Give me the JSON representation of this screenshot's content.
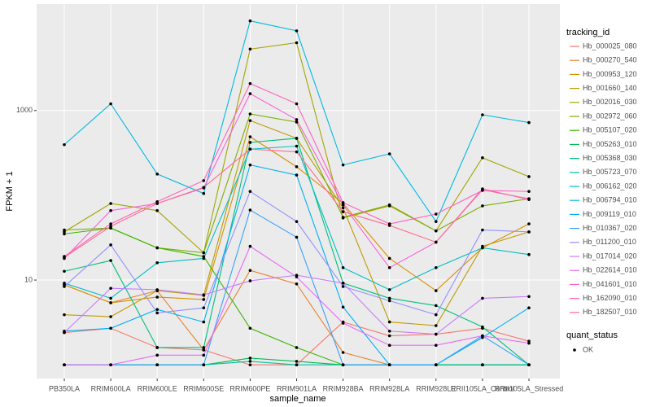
{
  "chart_data": {
    "type": "line",
    "x_label": "sample_name",
    "y_label": "FPKM + 1",
    "log_scale_y": true,
    "grid": true,
    "legend_position": "right",
    "legend_title": "tracking_id",
    "point_legend_title": "quant_status",
    "point_legend_label": "OK",
    "point_color": "#000000",
    "categories": [
      "PB350LA",
      "RRIM600LA",
      "RRIM600LE",
      "RRIM600SE",
      "RRIM600PE",
      "RRIM901LA",
      "RRIM928BA",
      "RRIM928LA",
      "RRIM928LE",
      "RRII105LA_Control",
      "RRII105LA_Stressed"
    ],
    "ylim": [
      0.69,
      18000
    ],
    "yticks": [
      10,
      1000
    ],
    "series": [
      {
        "name": "Hb_000025_080",
        "color": "#F8766D",
        "values": [
          2.4,
          2.7,
          1.6,
          1.5,
          1,
          1,
          3.2,
          2.2,
          2.3,
          2.7,
          1.9
        ]
      },
      {
        "name": "Hb_000270_540",
        "color": "#EA8331",
        "values": [
          8.8,
          5.4,
          7.5,
          1.5,
          13,
          9,
          1.4,
          1,
          1,
          1,
          1
        ]
      },
      {
        "name": "Hb_000953_120",
        "color": "#D89000",
        "values": [
          8.8,
          5.4,
          6.3,
          5.9,
          490,
          217,
          80,
          18,
          7.5,
          24,
          46
        ]
      },
      {
        "name": "Hb_001660_140",
        "color": "#C09B00",
        "values": [
          3.9,
          3.7,
          7.5,
          6.6,
          760,
          470,
          71,
          3.2,
          2.9,
          25,
          37
        ]
      },
      {
        "name": "Hb_002016_030",
        "color": "#A3A500",
        "values": [
          37,
          80,
          66,
          21,
          5300,
          6300,
          54,
          75,
          38,
          277,
          166
        ]
      },
      {
        "name": "Hb_002972_060",
        "color": "#7CAE00",
        "values": [
          39,
          41,
          24,
          21,
          910,
          730,
          55,
          77,
          38,
          75,
          91
        ]
      },
      {
        "name": "Hb_005107_020",
        "color": "#39B600",
        "values": [
          35,
          41,
          24,
          19,
          2.7,
          1.6,
          1,
          1,
          1,
          1,
          1
        ]
      },
      {
        "name": "Hb_005263_010",
        "color": "#00BB4E",
        "values": [
          1,
          1,
          1,
          1,
          1.2,
          1.1,
          1,
          1,
          1,
          1,
          1
        ]
      },
      {
        "name": "Hb_005368_030",
        "color": "#00BF7D",
        "values": [
          12.7,
          17,
          1.6,
          1.6,
          420,
          470,
          9.2,
          6.1,
          5,
          2.8,
          1
        ]
      },
      {
        "name": "Hb_005723_070",
        "color": "#00C1A3",
        "values": [
          1,
          1,
          1,
          1,
          1.1,
          1,
          1,
          1,
          1,
          1,
          1
        ]
      },
      {
        "name": "Hb_006162_020",
        "color": "#00BFC4",
        "values": [
          9.2,
          6.1,
          16,
          18,
          350,
          380,
          14,
          7.7,
          14,
          24,
          20
        ]
      },
      {
        "name": "Hb_006794_010",
        "color": "#00BAE0",
        "values": [
          395,
          1200,
          178,
          105,
          11400,
          8700,
          228,
          308,
          49,
          890,
          720
        ]
      },
      {
        "name": "Hb_009119_010",
        "color": "#00B0F6",
        "values": [
          2.5,
          2.7,
          4.5,
          3.2,
          228,
          173,
          4.8,
          1,
          1,
          2.1,
          4.7
        ]
      },
      {
        "name": "Hb_010367_020",
        "color": "#35A2FF",
        "values": [
          1,
          1,
          1,
          1,
          67,
          32,
          1,
          1,
          1,
          2.2,
          1
        ]
      },
      {
        "name": "Hb_011200_010",
        "color": "#9590FF",
        "values": [
          8.4,
          26,
          4.1,
          4.7,
          111,
          49,
          8.4,
          5.7,
          3.9,
          39,
          37
        ]
      },
      {
        "name": "Hb_017014_020",
        "color": "#C77CFF",
        "values": [
          2.4,
          8,
          7.7,
          6.7,
          9.8,
          11.4,
          9.2,
          2.5,
          2.3,
          6.1,
          6.4
        ]
      },
      {
        "name": "Hb_022614_010",
        "color": "#E76BF3",
        "values": [
          1,
          1,
          1.3,
          1.3,
          25,
          10.9,
          3.1,
          1.7,
          1.7,
          2.2,
          1.8
        ]
      },
      {
        "name": "Hb_041601_010",
        "color": "#FA62DB",
        "values": [
          18,
          66,
          80,
          122,
          1580,
          780,
          77,
          14,
          28,
          119,
          89
        ]
      },
      {
        "name": "Hb_162090_010",
        "color": "#FF62BC",
        "values": [
          19,
          46,
          84,
          149,
          2080,
          1200,
          82,
          46,
          60,
          114,
          111
        ]
      },
      {
        "name": "Hb_182507_010",
        "color": "#FF6C91",
        "values": [
          18.5,
          43,
          80,
          124,
          350,
          325,
          64,
          44,
          28,
          116,
          91
        ]
      }
    ]
  }
}
